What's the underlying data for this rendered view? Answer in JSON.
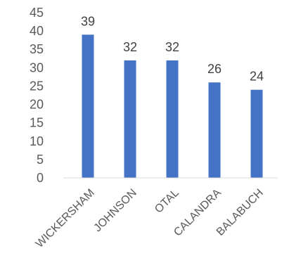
{
  "chart_data": {
    "type": "bar",
    "categories": [
      "WICKERSHAM",
      "JOHNSON",
      "OTAL",
      "CALANDRA",
      "BALABUCH"
    ],
    "values": [
      39,
      32,
      32,
      26,
      24
    ],
    "data_labels": [
      "39",
      "32",
      "32",
      "26",
      "24"
    ],
    "ylim": [
      0,
      45
    ],
    "yticks": [
      0,
      5,
      10,
      15,
      20,
      25,
      30,
      35,
      40,
      45
    ],
    "ytick_labels": [
      "0",
      "5",
      "10",
      "15",
      "20",
      "25",
      "30",
      "35",
      "40",
      "45"
    ],
    "grid": false,
    "legend": "none",
    "bar_color": "#4472C4",
    "axis_color": "#D9D9D9"
  }
}
